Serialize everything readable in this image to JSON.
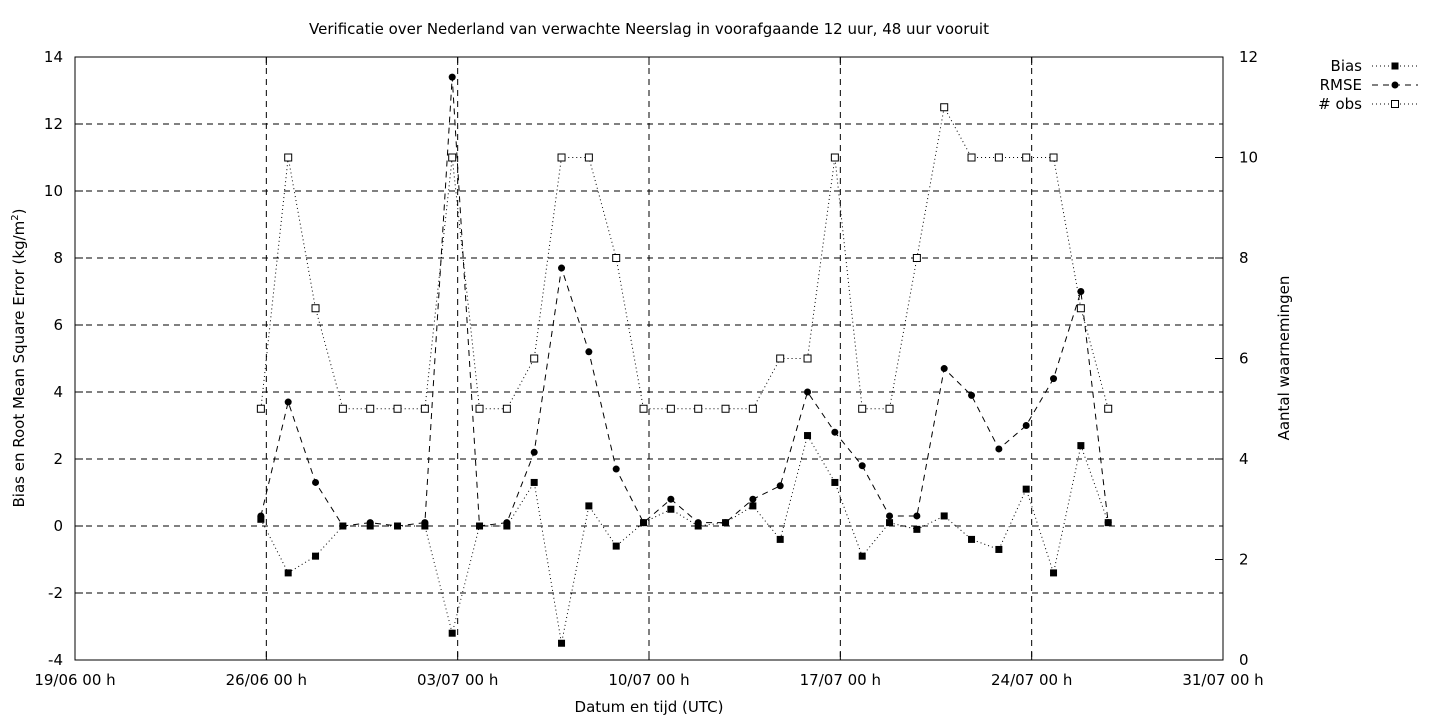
{
  "chart_data": {
    "type": "line",
    "title": "Verificatie over Nederland van verwachte Neerslag in voorafgaande 12 uur, 48 uur vooruit",
    "xlabel": "Datum en tijd (UTC)",
    "ylabel": "Bias en Root Mean Square Error (kg/m²)",
    "y2label": "Aantal waarnemingen",
    "x_tick_labels": [
      "19/06 00 h",
      "26/06 00 h",
      "03/07 00 h",
      "10/07 00 h",
      "17/07 00 h",
      "24/07 00 h",
      "31/07 00 h"
    ],
    "x_tick_days": [
      0,
      7,
      14,
      21,
      28,
      35,
      42
    ],
    "xlim_days": [
      0,
      42
    ],
    "ylim": [
      -4,
      14
    ],
    "y_ticks": [
      -4,
      -2,
      0,
      2,
      4,
      6,
      8,
      10,
      12,
      14
    ],
    "y2lim": [
      0,
      12
    ],
    "y2_ticks": [
      0,
      2,
      4,
      6,
      8,
      10,
      12
    ],
    "grid": true,
    "legend_position": "top-right, outside plot",
    "x_days": [
      6.8,
      7.8,
      8.8,
      9.8,
      10.8,
      11.8,
      12.8,
      13.8,
      14.8,
      15.8,
      16.8,
      17.8,
      18.8,
      19.8,
      20.8,
      21.8,
      22.8,
      23.8,
      24.8,
      25.8,
      26.8,
      27.8,
      28.8,
      29.8,
      30.8,
      31.8,
      32.8,
      33.8,
      34.8,
      35.8,
      36.8,
      37.8
    ],
    "series": [
      {
        "name": "Bias",
        "axis": "left",
        "marker": "filled-square",
        "dash": "1,3",
        "values": [
          0.2,
          -1.4,
          -0.9,
          0.0,
          0.0,
          0.0,
          0.0,
          -3.2,
          0.0,
          0.0,
          1.3,
          -3.5,
          0.6,
          -0.6,
          0.1,
          0.5,
          0.0,
          0.1,
          0.6,
          -0.4,
          2.7,
          1.3,
          -0.9,
          0.1,
          -0.1,
          0.3,
          -0.4,
          -0.7,
          1.1,
          -1.4,
          2.4,
          0.1
        ]
      },
      {
        "name": "RMSE",
        "axis": "left",
        "marker": "filled-circle",
        "dash": "6,5",
        "values": [
          0.3,
          3.7,
          1.3,
          0.0,
          0.1,
          0.0,
          0.1,
          13.4,
          0.0,
          0.1,
          2.2,
          7.7,
          5.2,
          1.7,
          0.1,
          0.8,
          0.1,
          0.1,
          0.8,
          1.2,
          4.0,
          2.8,
          1.8,
          0.3,
          0.3,
          4.7,
          3.9,
          2.3,
          3.0,
          4.4,
          7.0,
          0.1
        ]
      },
      {
        "name": "# obs",
        "axis": "right",
        "marker": "open-square",
        "dash": "1,3",
        "values": [
          5,
          10,
          7,
          5,
          5,
          5,
          5,
          10,
          5,
          5,
          6,
          10,
          10,
          8,
          5,
          5,
          5,
          5,
          5,
          6,
          6,
          10,
          5,
          5,
          8,
          11,
          10,
          10,
          10,
          10,
          7,
          5
        ]
      }
    ]
  }
}
